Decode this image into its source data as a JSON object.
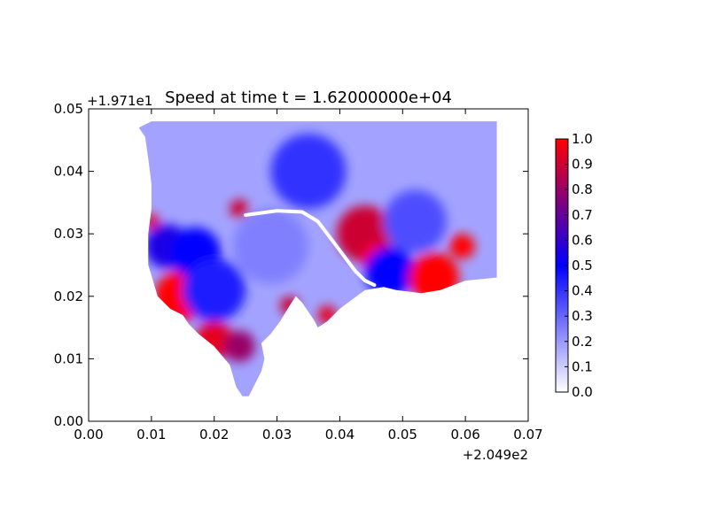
{
  "chart_data": {
    "type": "heatmap",
    "title": "Speed at time t = 1.62000000e+04",
    "xlabel": "",
    "ylabel": "",
    "xlim": [
      0.0,
      0.07
    ],
    "ylim": [
      0.0,
      0.05
    ],
    "x_ticks": [
      0.0,
      0.01,
      0.02,
      0.03,
      0.04,
      0.05,
      0.06,
      0.07
    ],
    "y_ticks": [
      0.0,
      0.01,
      0.02,
      0.03,
      0.04,
      0.05
    ],
    "x_tick_labels": [
      "0.00",
      "0.01",
      "0.02",
      "0.03",
      "0.04",
      "0.05",
      "0.06",
      "0.07"
    ],
    "y_tick_labels": [
      "0.00",
      "0.01",
      "0.02",
      "0.03",
      "0.04",
      "0.05"
    ],
    "x_offset_label": "+2.049e2",
    "y_offset_label": "+1.971e1",
    "colorbar": {
      "min": 0.0,
      "max": 1.0,
      "ticks": [
        0.0,
        0.1,
        0.2,
        0.3,
        0.4,
        0.5,
        0.6,
        0.7,
        0.8,
        0.9,
        1.0
      ],
      "tick_labels": [
        "0.0",
        "0.1",
        "0.2",
        "0.3",
        "0.4",
        "0.5",
        "0.6",
        "0.7",
        "0.8",
        "0.9",
        "1.0"
      ],
      "colors": [
        "#ffffff",
        "#0000ff",
        "#ff0000"
      ]
    },
    "grid": false,
    "domain_polygon": [
      [
        0.008,
        0.047
      ],
      [
        0.01,
        0.048
      ],
      [
        0.065,
        0.048
      ],
      [
        0.065,
        0.023
      ],
      [
        0.06,
        0.0225
      ],
      [
        0.056,
        0.021
      ],
      [
        0.053,
        0.0205
      ],
      [
        0.049,
        0.021
      ],
      [
        0.047,
        0.0215
      ],
      [
        0.044,
        0.021
      ],
      [
        0.042,
        0.0195
      ],
      [
        0.04,
        0.018
      ],
      [
        0.038,
        0.016
      ],
      [
        0.0365,
        0.015
      ],
      [
        0.036,
        0.016
      ],
      [
        0.035,
        0.0175
      ],
      [
        0.034,
        0.019
      ],
      [
        0.033,
        0.02
      ],
      [
        0.032,
        0.0185
      ],
      [
        0.0305,
        0.016
      ],
      [
        0.029,
        0.014
      ],
      [
        0.0275,
        0.0125
      ],
      [
        0.028,
        0.01
      ],
      [
        0.0275,
        0.008
      ],
      [
        0.0265,
        0.006
      ],
      [
        0.0255,
        0.004
      ],
      [
        0.0245,
        0.004
      ],
      [
        0.0235,
        0.0055
      ],
      [
        0.0225,
        0.009
      ],
      [
        0.02,
        0.012
      ],
      [
        0.0175,
        0.014
      ],
      [
        0.016,
        0.0155
      ],
      [
        0.015,
        0.017
      ],
      [
        0.013,
        0.018
      ],
      [
        0.011,
        0.02
      ],
      [
        0.0095,
        0.025
      ],
      [
        0.0095,
        0.03
      ],
      [
        0.01,
        0.034
      ],
      [
        0.01,
        0.038
      ],
      [
        0.0095,
        0.042
      ],
      [
        0.009,
        0.0455
      ]
    ],
    "speed_hotspots": [
      {
        "x": 0.0145,
        "y": 0.02,
        "r": 0.004,
        "v": 1.0
      },
      {
        "x": 0.0125,
        "y": 0.028,
        "r": 0.0035,
        "v": 0.55
      },
      {
        "x": 0.017,
        "y": 0.027,
        "r": 0.004,
        "v": 0.5
      },
      {
        "x": 0.02,
        "y": 0.021,
        "r": 0.005,
        "v": 0.45
      },
      {
        "x": 0.02,
        "y": 0.013,
        "r": 0.003,
        "v": 0.95
      },
      {
        "x": 0.024,
        "y": 0.012,
        "r": 0.0025,
        "v": 0.8
      },
      {
        "x": 0.044,
        "y": 0.03,
        "r": 0.0045,
        "v": 0.9
      },
      {
        "x": 0.046,
        "y": 0.026,
        "r": 0.0025,
        "v": 1.0
      },
      {
        "x": 0.048,
        "y": 0.024,
        "r": 0.004,
        "v": 0.5
      },
      {
        "x": 0.055,
        "y": 0.023,
        "r": 0.004,
        "v": 1.0
      },
      {
        "x": 0.0595,
        "y": 0.028,
        "r": 0.002,
        "v": 1.0
      },
      {
        "x": 0.038,
        "y": 0.017,
        "r": 0.0015,
        "v": 0.95
      },
      {
        "x": 0.032,
        "y": 0.0185,
        "r": 0.0015,
        "v": 0.9
      },
      {
        "x": 0.024,
        "y": 0.034,
        "r": 0.0015,
        "v": 0.9
      },
      {
        "x": 0.01,
        "y": 0.032,
        "r": 0.0012,
        "v": 0.95
      },
      {
        "x": 0.035,
        "y": 0.04,
        "r": 0.006,
        "v": 0.4
      },
      {
        "x": 0.052,
        "y": 0.032,
        "r": 0.005,
        "v": 0.35
      },
      {
        "x": 0.029,
        "y": 0.028,
        "r": 0.006,
        "v": 0.25
      }
    ],
    "background_speed": 0.18,
    "channel": [
      [
        0.025,
        0.033
      ],
      [
        0.03,
        0.0337
      ],
      [
        0.034,
        0.0335
      ],
      [
        0.0365,
        0.032
      ],
      [
        0.038,
        0.03
      ],
      [
        0.0395,
        0.028
      ],
      [
        0.041,
        0.026
      ],
      [
        0.0425,
        0.024
      ],
      [
        0.044,
        0.0225
      ],
      [
        0.0455,
        0.0218
      ]
    ]
  }
}
